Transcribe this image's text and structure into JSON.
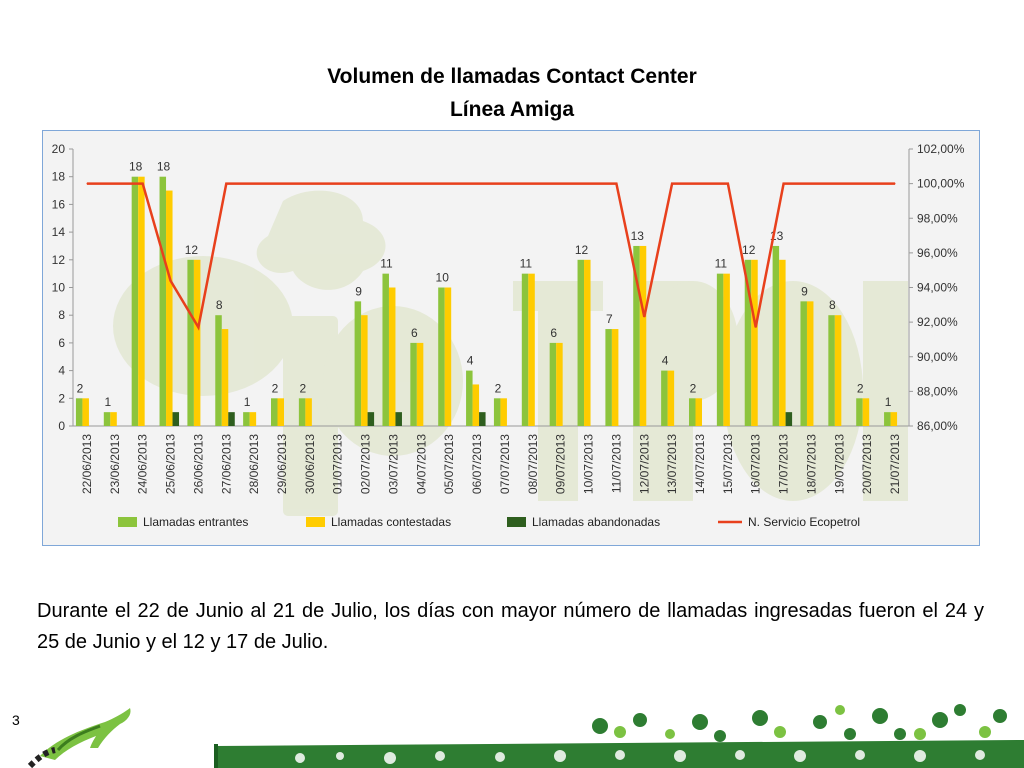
{
  "slide": {
    "title_line1": "Volumen de llamadas Contact Center",
    "title_line2": "Línea Amiga",
    "body": "Durante el 22 de Junio al 21 de Julio, los días con mayor número de llamadas ingresadas fueron el 24 y 25 de Junio y el 12 y 17 de Julio.",
    "page_number": "3"
  },
  "colors": {
    "entrantes": "#8cc43c",
    "contestadas": "#ffcc00",
    "abandonadas": "#2e5e1e",
    "servicio": "#e8401c",
    "footer_green": "#2e7d32"
  },
  "chart_data": {
    "type": "bar",
    "categories": [
      "22/06/2013",
      "23/06/2013",
      "24/06/2013",
      "25/06/2013",
      "26/06/2013",
      "27/06/2013",
      "28/06/2013",
      "29/06/2013",
      "30/06/2013",
      "01/07/2013",
      "02/07/2013",
      "03/07/2013",
      "04/07/2013",
      "05/07/2013",
      "06/07/2013",
      "07/07/2013",
      "08/07/2013",
      "09/07/2013",
      "10/07/2013",
      "11/07/2013",
      "12/07/2013",
      "13/07/2013",
      "14/07/2013",
      "15/07/2013",
      "16/07/2013",
      "17/07/2013",
      "18/07/2013",
      "19/07/2013",
      "20/07/2013",
      "21/07/2013"
    ],
    "data_labels": [
      "2",
      "1",
      "18",
      "18",
      "12",
      "8",
      "1",
      "2",
      "2",
      "",
      "9",
      "11",
      "6",
      "10",
      "4",
      "2",
      "11",
      "6",
      "12",
      "7",
      "13",
      "4",
      "2",
      "11",
      "12",
      "13",
      "9",
      "8",
      "2",
      "1"
    ],
    "series": [
      {
        "name": "Llamadas entrantes",
        "type": "bar",
        "axis": "left",
        "values": [
          2,
          1,
          18,
          18,
          12,
          8,
          1,
          2,
          2,
          0,
          9,
          11,
          6,
          10,
          4,
          2,
          11,
          6,
          12,
          7,
          13,
          4,
          2,
          11,
          12,
          13,
          9,
          8,
          2,
          1
        ]
      },
      {
        "name": "Llamadas contestadas",
        "type": "bar",
        "axis": "left",
        "values": [
          2,
          1,
          18,
          17,
          12,
          7,
          1,
          2,
          2,
          0,
          8,
          10,
          6,
          10,
          3,
          2,
          11,
          6,
          12,
          7,
          13,
          4,
          2,
          11,
          12,
          12,
          9,
          8,
          2,
          1
        ]
      },
      {
        "name": "Llamadas abandonadas",
        "type": "bar",
        "axis": "left",
        "values": [
          0,
          0,
          0,
          1,
          0,
          1,
          0,
          0,
          0,
          0,
          1,
          1,
          0,
          0,
          1,
          0,
          0,
          0,
          0,
          0,
          0,
          0,
          0,
          0,
          0,
          1,
          0,
          0,
          0,
          0
        ]
      },
      {
        "name": "N. Servicio Ecopetrol",
        "type": "line",
        "axis": "right",
        "values": [
          100,
          100,
          100,
          94.4,
          91.7,
          100,
          100,
          100,
          100,
          100,
          100,
          100,
          100,
          100,
          100,
          100,
          100,
          100,
          100,
          100,
          92.3,
          100,
          100,
          100,
          91.7,
          100,
          100,
          100,
          100,
          100
        ]
      }
    ],
    "left_axis": {
      "min": 0,
      "max": 20,
      "ticks": [
        "0",
        "2",
        "4",
        "6",
        "8",
        "10",
        "12",
        "14",
        "16",
        "18",
        "20"
      ]
    },
    "right_axis": {
      "min": 86,
      "max": 102,
      "ticks": [
        "86,00%",
        "88,00%",
        "90,00%",
        "92,00%",
        "94,00%",
        "96,00%",
        "98,00%",
        "100,00%",
        "102,00%"
      ]
    },
    "legend": {
      "position": "bottom",
      "items": [
        "Llamadas entrantes",
        "Llamadas contestadas",
        "Llamadas abandonadas",
        "N. Servicio Ecopetrol"
      ]
    },
    "watermark": "ecopetrol",
    "grid": false
  }
}
